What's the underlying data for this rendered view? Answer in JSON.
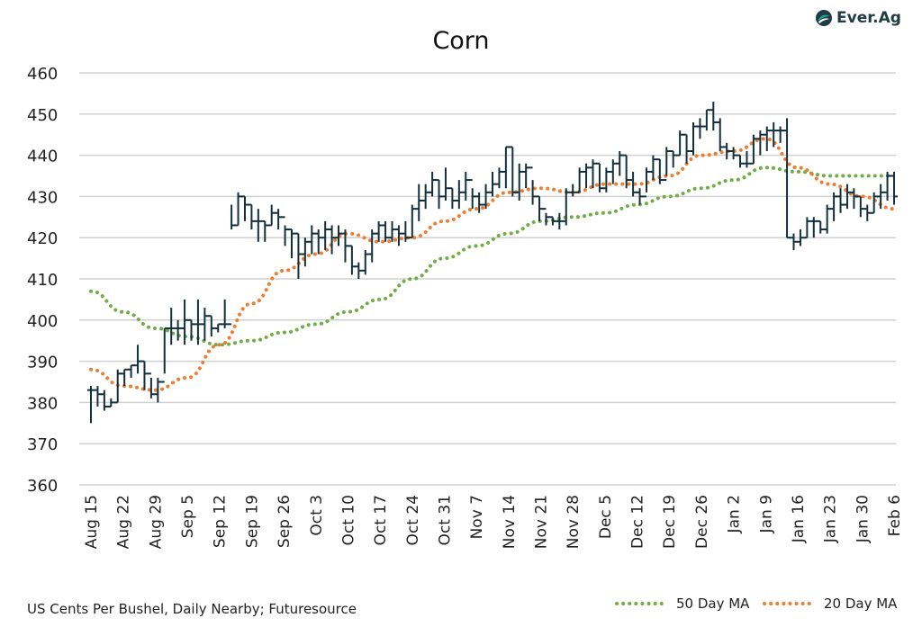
{
  "chart_data": {
    "type": "ohlc",
    "title": "Corn",
    "ylabel": "",
    "ylim": [
      360,
      460
    ],
    "yticks": [
      360,
      370,
      380,
      390,
      400,
      410,
      420,
      430,
      440,
      450,
      460
    ],
    "grid": true,
    "legend_placement": "bottom-right",
    "categories": [
      "Aug 15",
      "Aug 22",
      "Aug 29",
      "Sep 5",
      "Sep 12",
      "Sep 19",
      "Sep 26",
      "Oct 3",
      "Oct 10",
      "Oct 17",
      "Oct 24",
      "Oct 31",
      "Nov 7",
      "Nov 14",
      "Nov 21",
      "Nov 28",
      "Dec 5",
      "Dec 12",
      "Dec 19",
      "Dec 26",
      "Jan 2",
      "Jan 9",
      "Jan 16",
      "Jan 23",
      "Jan 30",
      "Feb 6"
    ],
    "bars_hlc": [
      [
        384,
        375,
        383
      ],
      [
        384,
        379,
        382
      ],
      [
        383,
        378,
        379
      ],
      [
        381,
        379,
        380
      ],
      [
        388,
        380,
        387
      ],
      [
        388,
        384,
        388
      ],
      [
        389,
        386,
        389
      ],
      [
        394,
        387,
        390
      ],
      [
        390,
        383,
        387
      ],
      [
        386,
        381,
        382
      ],
      [
        386,
        380,
        385
      ],
      [
        398,
        387,
        398
      ],
      [
        403,
        394,
        398
      ],
      [
        400,
        395,
        398
      ],
      [
        405,
        394,
        400
      ],
      [
        400,
        395,
        399
      ],
      [
        405,
        394,
        399
      ],
      [
        403,
        395,
        401
      ],
      [
        401,
        396,
        398
      ],
      [
        399,
        397,
        399
      ],
      [
        405,
        398,
        399
      ],
      [
        428,
        422,
        423
      ],
      [
        431,
        423,
        430
      ],
      [
        430,
        424,
        428
      ],
      [
        428,
        422,
        424
      ],
      [
        427,
        419,
        424
      ],
      [
        424,
        419,
        423
      ],
      [
        428,
        423,
        426
      ],
      [
        427,
        422,
        425
      ],
      [
        423,
        418,
        422
      ],
      [
        422,
        415,
        421
      ],
      [
        421,
        410,
        416
      ],
      [
        420,
        413,
        419
      ],
      [
        423,
        416,
        421
      ],
      [
        422,
        416,
        420
      ],
      [
        424,
        417,
        422
      ],
      [
        423,
        416,
        420
      ],
      [
        423,
        418,
        421
      ],
      [
        422,
        414,
        418
      ],
      [
        418,
        411,
        413
      ],
      [
        414,
        410,
        412
      ],
      [
        417,
        411,
        416
      ],
      [
        422,
        414,
        421
      ],
      [
        424,
        419,
        423
      ],
      [
        424,
        419,
        420
      ],
      [
        424,
        419,
        422
      ],
      [
        423,
        418,
        421
      ],
      [
        424,
        419,
        420
      ],
      [
        428,
        420,
        427
      ],
      [
        433,
        424,
        429
      ],
      [
        433,
        427,
        431
      ],
      [
        436,
        430,
        434
      ],
      [
        434,
        427,
        430
      ],
      [
        437,
        429,
        432
      ],
      [
        432,
        427,
        429
      ],
      [
        434,
        427,
        431
      ],
      [
        436,
        429,
        434
      ],
      [
        432,
        427,
        430
      ],
      [
        431,
        426,
        428
      ],
      [
        433,
        427,
        431
      ],
      [
        436,
        430,
        433
      ],
      [
        437,
        432,
        436
      ],
      [
        442,
        432,
        442
      ],
      [
        442,
        430,
        431
      ],
      [
        438,
        429,
        436
      ],
      [
        438,
        432,
        437
      ],
      [
        434,
        428,
        430
      ],
      [
        430,
        424,
        427
      ],
      [
        426,
        423,
        425
      ],
      [
        425,
        423,
        424
      ],
      [
        426,
        422,
        424
      ],
      [
        432,
        423,
        431
      ],
      [
        433,
        430,
        431
      ],
      [
        437,
        431,
        436
      ],
      [
        438,
        432,
        437
      ],
      [
        439,
        432,
        438
      ],
      [
        438,
        431,
        432
      ],
      [
        437,
        431,
        436
      ],
      [
        439,
        433,
        438
      ],
      [
        441,
        435,
        440
      ],
      [
        440,
        432,
        434
      ],
      [
        436,
        430,
        431
      ],
      [
        432,
        428,
        430
      ],
      [
        437,
        431,
        436
      ],
      [
        440,
        434,
        439
      ],
      [
        439,
        433,
        434
      ],
      [
        442,
        435,
        441
      ],
      [
        441,
        437,
        440
      ],
      [
        446,
        440,
        445
      ],
      [
        445,
        438,
        441
      ],
      [
        448,
        440,
        447
      ],
      [
        449,
        444,
        447
      ],
      [
        451,
        446,
        451
      ],
      [
        453,
        446,
        448
      ],
      [
        449,
        441,
        442
      ],
      [
        443,
        439,
        441
      ],
      [
        442,
        439,
        440
      ],
      [
        440,
        437,
        438
      ],
      [
        441,
        437,
        438
      ],
      [
        445,
        438,
        444
      ],
      [
        446,
        440,
        445
      ],
      [
        447,
        441,
        446
      ],
      [
        448,
        442,
        446
      ],
      [
        447,
        443,
        446
      ],
      [
        449,
        420,
        420
      ],
      [
        421,
        417,
        419
      ],
      [
        422,
        418,
        420
      ],
      [
        425,
        420,
        424
      ],
      [
        425,
        420,
        424
      ],
      [
        424,
        421,
        422
      ],
      [
        428,
        421,
        427
      ],
      [
        431,
        424,
        430
      ],
      [
        432,
        426,
        428
      ],
      [
        433,
        427,
        431
      ],
      [
        432,
        427,
        430
      ],
      [
        430,
        425,
        427
      ],
      [
        428,
        424,
        426
      ],
      [
        431,
        426,
        430
      ],
      [
        433,
        427,
        431
      ],
      [
        436,
        429,
        435
      ],
      [
        436,
        428,
        430
      ]
    ],
    "series": [
      {
        "name": "50 Day MA",
        "color": "#70ad47",
        "values": [
          407,
          402,
          398,
          396,
          394,
          395,
          397,
          399,
          402,
          405,
          410,
          415,
          418,
          421,
          424,
          425,
          426,
          428,
          430,
          432,
          434,
          437,
          436,
          435,
          435,
          435
        ]
      },
      {
        "name": "20 Day MA",
        "color": "#ed7d31",
        "values": [
          388,
          384,
          383,
          386,
          394,
          404,
          412,
          416,
          421,
          419,
          420,
          424,
          427,
          431,
          432,
          431,
          433,
          433,
          435,
          440,
          441,
          444,
          437,
          433,
          430,
          427
        ]
      }
    ],
    "bar_color": "#13303d",
    "source": "US Cents Per Bushel, Daily Nearby; Futuresource"
  },
  "logo": {
    "text": "Ever.Ag",
    "color": "#1f3b45",
    "accent": "#17a88a"
  }
}
